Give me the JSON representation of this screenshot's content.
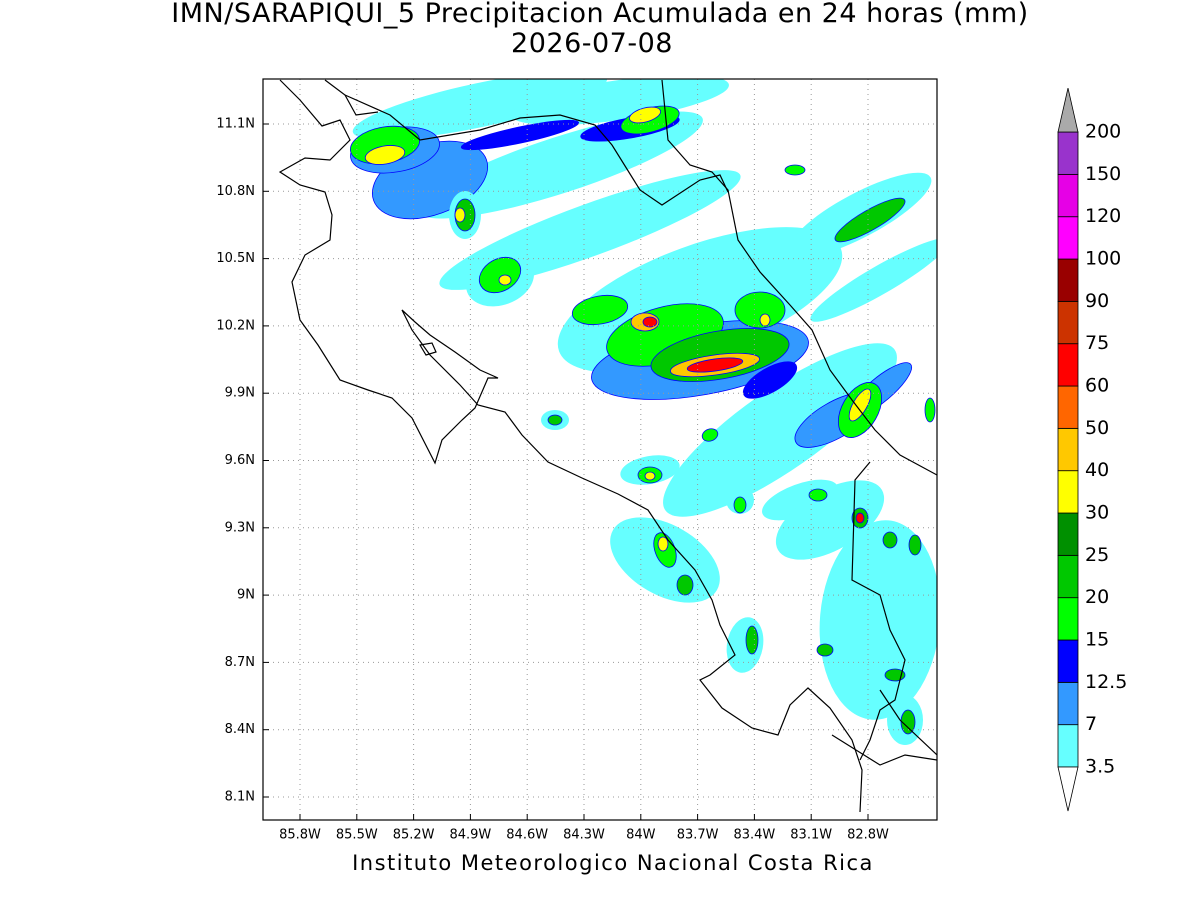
{
  "header": {
    "title": "IMN/SARAPIQUI_5 Precipitacion Acumulada en 24 horas (mm)",
    "date": "2026-07-08"
  },
  "map": {
    "lat_ticks": [
      "11.1N",
      "10.8N",
      "10.5N",
      "10.2N",
      "9.9N",
      "9.6N",
      "9.3N",
      "9N",
      "8.7N",
      "8.4N",
      "8.1N"
    ],
    "lon_ticks": [
      "85.8W",
      "85.5W",
      "85.2W",
      "84.9W",
      "84.6W",
      "84.3W",
      "84W",
      "83.7W",
      "83.4W",
      "83.1W",
      "82.8W"
    ]
  },
  "colorbar": {
    "levels": [
      "3.5",
      "7",
      "12.5",
      "15",
      "20",
      "25",
      "30",
      "40",
      "50",
      "60",
      "75",
      "90",
      "100",
      "120",
      "150",
      "200"
    ],
    "colors": [
      "#66ffff",
      "#3399ff",
      "#0000ff",
      "#00ff00",
      "#00c800",
      "#009000",
      "#ffff00",
      "#ffc800",
      "#ff6600",
      "#ff0000",
      "#cc3300",
      "#990000",
      "#ff00ff",
      "#e600e6",
      "#9933cc"
    ],
    "top_color": "#f2f2f2",
    "over_color": "#aaaaaa",
    "under_color": "#ffffff"
  },
  "footer": "Instituto Meteorologico Nacional Costa Rica"
}
